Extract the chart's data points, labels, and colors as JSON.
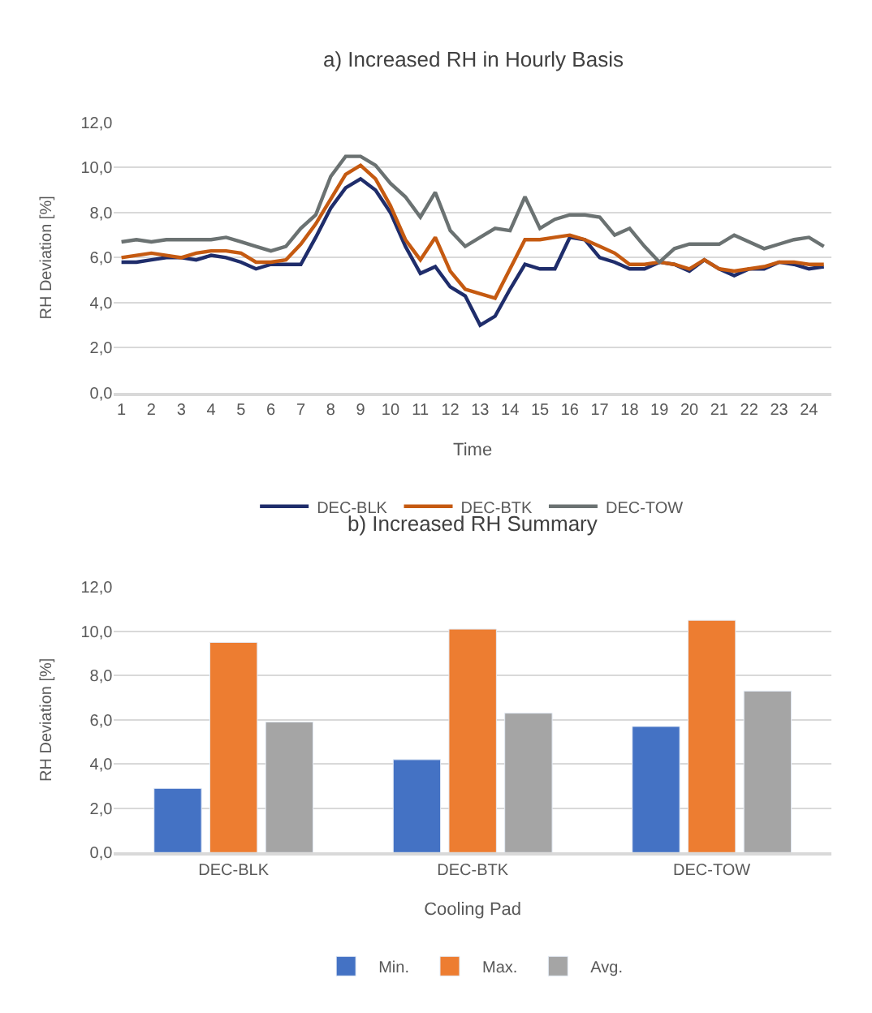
{
  "chart_data": [
    {
      "type": "line",
      "title": "a) Increased RH in Hourly Basis",
      "xlabel": "Time",
      "ylabel": "RH Deviation [%]",
      "x": [
        1,
        1.5,
        2,
        2.5,
        3,
        3.5,
        4,
        4.5,
        5,
        5.5,
        6,
        6.5,
        7,
        7.5,
        8,
        8.5,
        9,
        9.5,
        10,
        10.5,
        11,
        11.5,
        12,
        12.5,
        13,
        13.5,
        14,
        14.5,
        15,
        15.5,
        16,
        16.5,
        17,
        17.5,
        18,
        18.5,
        19,
        19.5,
        20,
        20.5,
        21,
        21.5,
        22,
        22.5,
        23,
        23.5,
        24,
        24.5
      ],
      "xlim": [
        0.75,
        24.75
      ],
      "xticks": [
        1,
        2,
        3,
        4,
        5,
        6,
        7,
        8,
        9,
        10,
        11,
        12,
        13,
        14,
        15,
        16,
        17,
        18,
        19,
        20,
        21,
        22,
        23,
        24
      ],
      "ylim": [
        0,
        12
      ],
      "yticks": [
        {
          "value": 0,
          "label": "0,0"
        },
        {
          "value": 2,
          "label": "2,0"
        },
        {
          "value": 4,
          "label": "4,0"
        },
        {
          "value": 6,
          "label": "6,0"
        },
        {
          "value": 8,
          "label": "8,0"
        },
        {
          "value": 10,
          "label": "10,0"
        },
        {
          "value": 12,
          "label": "12,0"
        }
      ],
      "grid": "y",
      "legend": "bottom",
      "line_style": "solid",
      "series": [
        {
          "name": "DEC-BLK",
          "color": "#1f2d6b",
          "values": [
            5.8,
            5.8,
            5.9,
            6.0,
            6.0,
            5.9,
            6.1,
            6.0,
            5.8,
            5.5,
            5.7,
            5.7,
            5.7,
            6.9,
            8.2,
            9.1,
            9.5,
            9.0,
            8.0,
            6.5,
            5.3,
            5.6,
            4.7,
            4.3,
            3.0,
            3.4,
            4.6,
            5.7,
            5.5,
            5.5,
            6.9,
            6.8,
            6.0,
            5.8,
            5.5,
            5.5,
            5.8,
            5.7,
            5.4,
            5.9,
            5.5,
            5.2,
            5.5,
            5.5,
            5.8,
            5.7,
            5.5,
            5.6
          ]
        },
        {
          "name": "DEC-BTK",
          "color": "#c55a11",
          "values": [
            6.0,
            6.1,
            6.2,
            6.1,
            6.0,
            6.2,
            6.3,
            6.3,
            6.2,
            5.8,
            5.8,
            5.9,
            6.6,
            7.5,
            8.6,
            9.7,
            10.1,
            9.5,
            8.3,
            6.8,
            5.9,
            6.9,
            5.4,
            4.6,
            4.4,
            4.2,
            5.5,
            6.8,
            6.8,
            6.9,
            7.0,
            6.8,
            6.5,
            6.2,
            5.7,
            5.7,
            5.8,
            5.7,
            5.5,
            5.9,
            5.5,
            5.4,
            5.5,
            5.6,
            5.8,
            5.8,
            5.7,
            5.7
          ]
        },
        {
          "name": "DEC-TOW",
          "color": "#6b7272",
          "values": [
            6.7,
            6.8,
            6.7,
            6.8,
            6.8,
            6.8,
            6.8,
            6.9,
            6.7,
            6.5,
            6.3,
            6.5,
            7.3,
            7.9,
            9.6,
            10.5,
            10.5,
            10.1,
            9.3,
            8.7,
            7.8,
            8.9,
            7.2,
            6.5,
            6.9,
            7.3,
            7.2,
            8.7,
            7.3,
            7.7,
            7.9,
            7.9,
            7.8,
            7.0,
            7.3,
            6.5,
            5.8,
            6.4,
            6.6,
            6.6,
            6.6,
            7.0,
            6.7,
            6.4,
            6.6,
            6.8,
            6.9,
            6.5
          ]
        }
      ]
    },
    {
      "type": "bar",
      "title": "b) Increased RH Summary",
      "xlabel": "Cooling Pad",
      "ylabel": "RH Deviation [%]",
      "categories": [
        "DEC-BLK",
        "DEC-BTK",
        "DEC-TOW"
      ],
      "ylim": [
        0,
        12
      ],
      "yticks": [
        {
          "value": 0,
          "label": "0,0"
        },
        {
          "value": 2,
          "label": "2,0"
        },
        {
          "value": 4,
          "label": "4,0"
        },
        {
          "value": 6,
          "label": "6,0"
        },
        {
          "value": 8,
          "label": "8,0"
        },
        {
          "value": 10,
          "label": "10,0"
        },
        {
          "value": 12,
          "label": "12,0"
        }
      ],
      "grid": "y",
      "legend": "bottom",
      "series": [
        {
          "name": "Min.",
          "color": "#4472c4",
          "values": [
            2.9,
            4.2,
            5.7
          ]
        },
        {
          "name": "Max.",
          "color": "#ed7d31",
          "values": [
            9.5,
            10.1,
            10.5
          ]
        },
        {
          "name": "Avg.",
          "color": "#a5a5a5",
          "values": [
            5.9,
            6.3,
            7.3
          ]
        }
      ]
    }
  ]
}
